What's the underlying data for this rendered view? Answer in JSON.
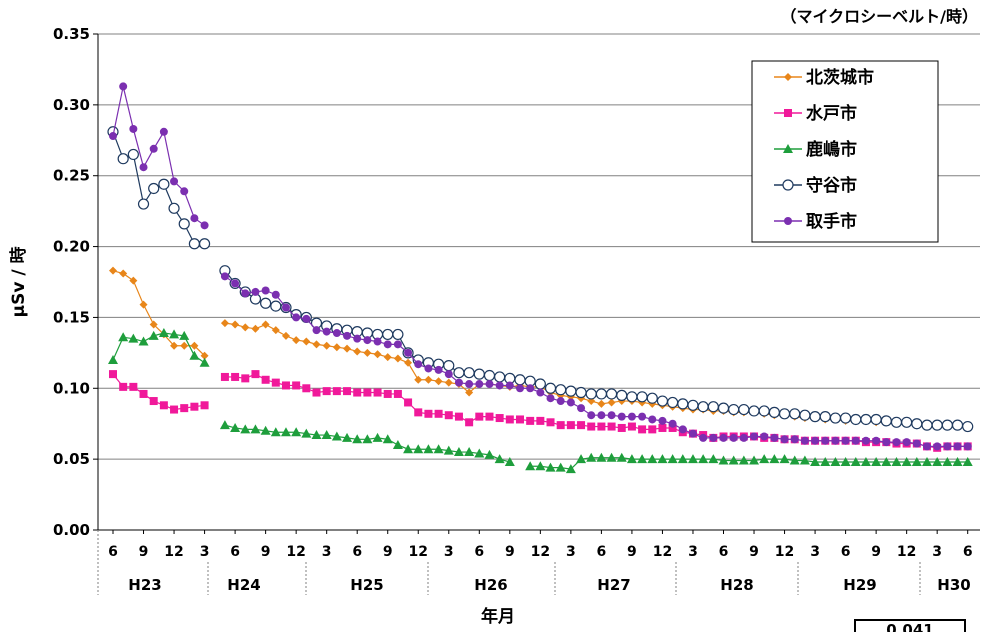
{
  "chart_data": {
    "type": "line",
    "unit_note": "（マイクロシーベルト/時）",
    "ylabel": "μSv / 時",
    "xlabel": "年月",
    "ylim": [
      0,
      0.35
    ],
    "yticks": [
      "0.00",
      "0.05",
      "0.10",
      "0.15",
      "0.20",
      "0.25",
      "0.30",
      "0.35"
    ],
    "grid": true,
    "legend_position": "top-right",
    "start_month": "H23-06",
    "months": 85,
    "month_ticks": [
      "6",
      "9",
      "12",
      "3",
      "6",
      "9",
      "12",
      "3",
      "6",
      "9",
      "12",
      "3",
      "6",
      "9",
      "12",
      "3",
      "6",
      "9",
      "12",
      "3",
      "6",
      "9",
      "12",
      "3",
      "6",
      "9",
      "12",
      "3",
      "6",
      "9",
      "12",
      "3",
      "6",
      "9",
      "12",
      "3",
      "6",
      "9",
      "12",
      "3",
      "6",
      "9",
      "12",
      "3",
      "6",
      "9",
      "12",
      "3",
      "6",
      "9",
      "12",
      "3",
      "6",
      "9",
      "12",
      "3",
      "6",
      "9",
      "12",
      "3",
      "6",
      "9",
      "12",
      "3",
      "6",
      "9",
      "12",
      "3",
      "6",
      "9",
      "12",
      "3",
      "6",
      "9",
      "12",
      "3",
      "6",
      "9",
      "12",
      "3",
      "6",
      "9",
      "12",
      "3",
      "6"
    ],
    "year_labels": [
      "H23",
      "H24",
      "H25",
      "H26",
      "H27",
      "H28",
      "H29",
      "H30"
    ],
    "corner_value": "0.041",
    "series": [
      {
        "name": "北茨城市",
        "color": "#E8861A",
        "marker": "diamond",
        "values": [
          0.183,
          0.181,
          0.176,
          0.159,
          0.145,
          0.138,
          0.13,
          0.13,
          0.13,
          0.123,
          null,
          0.146,
          0.145,
          0.143,
          0.142,
          0.145,
          0.141,
          0.137,
          0.134,
          0.133,
          0.131,
          0.13,
          0.129,
          0.128,
          0.126,
          0.125,
          0.124,
          0.122,
          0.121,
          0.118,
          0.106,
          0.106,
          0.105,
          0.104,
          0.103,
          0.097,
          0.103,
          0.103,
          0.102,
          0.101,
          0.102,
          0.101,
          0.101,
          0.097,
          0.095,
          0.094,
          0.093,
          0.091,
          0.089,
          0.09,
          0.091,
          0.091,
          0.09,
          0.089,
          0.088,
          0.087,
          0.086,
          0.085,
          0.085,
          0.084,
          0.084,
          0.083,
          0.083,
          0.083,
          0.082,
          0.081,
          0.081,
          0.08,
          0.079,
          0.079,
          0.078,
          0.078,
          0.077,
          0.077,
          0.077,
          0.076,
          0.076,
          0.076,
          0.075,
          0.075,
          0.074,
          0.074,
          0.073,
          0.073,
          0.073
        ]
      },
      {
        "name": "水戸市",
        "color": "#F0199A",
        "marker": "square",
        "values": [
          0.11,
          0.101,
          0.101,
          0.096,
          0.091,
          0.088,
          0.085,
          0.086,
          0.087,
          0.088,
          null,
          0.108,
          0.108,
          0.107,
          0.11,
          0.106,
          0.104,
          0.102,
          0.102,
          0.1,
          0.097,
          0.098,
          0.098,
          0.098,
          0.097,
          0.097,
          0.097,
          0.096,
          0.096,
          0.09,
          0.083,
          0.082,
          0.082,
          0.081,
          0.08,
          0.076,
          0.08,
          0.08,
          0.079,
          0.078,
          0.078,
          0.077,
          0.077,
          0.076,
          0.074,
          0.074,
          0.074,
          0.073,
          0.073,
          0.073,
          0.072,
          0.073,
          0.071,
          0.071,
          0.072,
          0.072,
          0.069,
          0.068,
          0.067,
          0.065,
          0.066,
          0.066,
          0.066,
          0.066,
          0.065,
          0.065,
          0.064,
          0.064,
          0.063,
          0.063,
          0.063,
          0.063,
          0.063,
          0.063,
          0.062,
          0.062,
          0.062,
          0.061,
          0.061,
          0.061,
          0.059,
          0.058,
          0.059,
          0.059,
          0.059
        ]
      },
      {
        "name": "鹿嶋市",
        "color": "#1E9E3C",
        "marker": "triangle",
        "values": [
          0.12,
          0.136,
          0.135,
          0.133,
          0.137,
          0.139,
          0.138,
          0.137,
          0.123,
          0.118,
          null,
          0.074,
          0.072,
          0.071,
          0.071,
          0.07,
          0.069,
          0.069,
          0.069,
          0.068,
          0.067,
          0.067,
          0.066,
          0.065,
          0.064,
          0.064,
          0.065,
          0.064,
          0.06,
          0.057,
          0.057,
          0.057,
          0.057,
          0.056,
          0.055,
          0.055,
          0.054,
          0.053,
          0.05,
          0.048,
          null,
          0.045,
          0.045,
          0.044,
          0.044,
          0.043,
          0.05,
          0.051,
          0.051,
          0.051,
          0.051,
          0.05,
          0.05,
          0.05,
          0.05,
          0.05,
          0.05,
          0.05,
          0.05,
          0.05,
          0.049,
          0.049,
          0.049,
          0.049,
          0.05,
          0.05,
          0.05,
          0.049,
          0.049,
          0.048,
          0.048,
          0.048,
          0.048,
          0.048,
          0.048,
          0.048,
          0.048,
          0.048,
          0.048,
          0.048,
          0.048,
          0.048,
          0.048,
          0.048,
          0.048
        ]
      },
      {
        "name": "守谷市",
        "color": "#1F3A5F",
        "marker": "circle-open",
        "values": [
          0.281,
          0.262,
          0.265,
          0.23,
          0.241,
          0.244,
          0.227,
          0.216,
          0.202,
          0.202,
          null,
          0.183,
          0.174,
          0.168,
          0.163,
          0.16,
          0.158,
          0.157,
          0.152,
          0.15,
          0.146,
          0.144,
          0.142,
          0.141,
          0.14,
          0.139,
          0.138,
          0.138,
          0.138,
          0.125,
          0.12,
          0.118,
          0.117,
          0.116,
          0.111,
          0.111,
          0.11,
          0.109,
          0.108,
          0.107,
          0.106,
          0.105,
          0.103,
          0.1,
          0.099,
          0.098,
          0.097,
          0.096,
          0.096,
          0.096,
          0.095,
          0.094,
          0.094,
          0.093,
          0.091,
          0.09,
          0.089,
          0.088,
          0.087,
          0.087,
          0.086,
          0.085,
          0.085,
          0.084,
          0.084,
          0.083,
          0.082,
          0.082,
          0.081,
          0.08,
          0.08,
          0.079,
          0.079,
          0.078,
          0.078,
          0.078,
          0.077,
          0.076,
          0.076,
          0.075,
          0.074,
          0.074,
          0.074,
          0.074,
          0.073
        ]
      },
      {
        "name": "取手市",
        "color": "#7B2FB0",
        "marker": "circle",
        "values": [
          0.278,
          0.313,
          0.283,
          0.256,
          0.269,
          0.281,
          0.246,
          0.239,
          0.22,
          0.215,
          null,
          0.179,
          0.174,
          0.167,
          0.168,
          0.169,
          0.166,
          0.157,
          0.15,
          0.149,
          0.141,
          0.14,
          0.139,
          0.137,
          0.135,
          0.134,
          0.133,
          0.131,
          0.131,
          0.125,
          0.117,
          0.114,
          0.113,
          0.11,
          0.104,
          0.103,
          0.103,
          0.103,
          0.102,
          0.102,
          0.1,
          0.1,
          0.097,
          0.093,
          0.091,
          0.09,
          0.086,
          0.081,
          0.081,
          0.081,
          0.08,
          0.08,
          0.08,
          0.078,
          0.077,
          0.075,
          0.071,
          0.068,
          0.065,
          0.065,
          0.065,
          0.065,
          0.065,
          0.066,
          0.066,
          0.065,
          0.064,
          0.064,
          0.063,
          0.063,
          0.063,
          0.063,
          0.063,
          0.063,
          0.063,
          0.063,
          0.062,
          0.062,
          0.062,
          0.061,
          0.059,
          0.059,
          0.059,
          0.059,
          0.059
        ]
      }
    ]
  }
}
